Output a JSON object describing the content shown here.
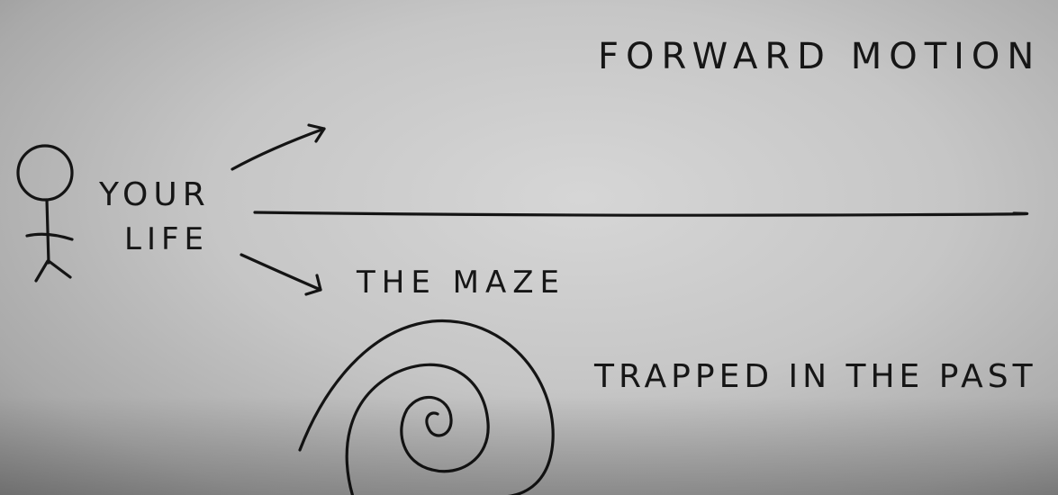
{
  "labels": {
    "forward_motion": "FORWARD MOTION",
    "your": "YOUR",
    "life": "LIFE",
    "the_maze": "THE MAZE",
    "trapped_in_the_past": "TRAPPED IN THE PAST"
  },
  "colors": {
    "ink": "#141414",
    "paper": "#cfcfcf"
  },
  "icons": {
    "figure": "stick-figure-icon",
    "arrow_up": "arrow-up-right-icon",
    "arrow_down": "arrow-down-right-icon",
    "spiral": "spiral-icon"
  }
}
